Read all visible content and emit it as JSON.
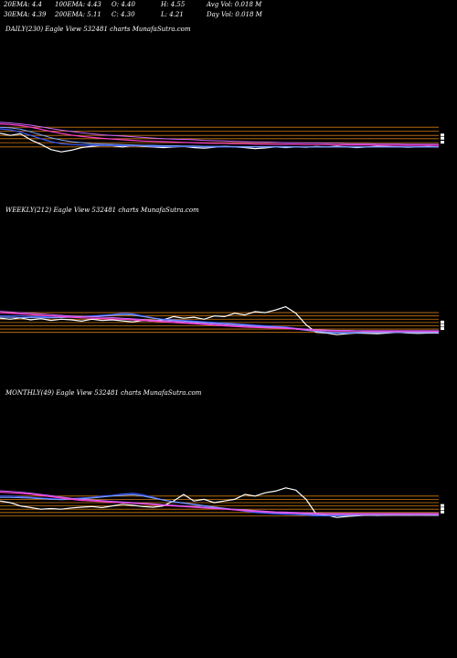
{
  "header": {
    "ema20": "20EMA: 4.4",
    "ema100": "100EMA: 4.43",
    "open": "O: 4.40",
    "high": "H: 4.55",
    "avg_vol": "Avg Vol: 0.018 M",
    "ema30": "30EMA: 4.39",
    "ema200": "200EMA: 5.11",
    "close": "C: 4.30",
    "low": "L: 4.21",
    "day_vol": "Day Vol: 0.018 M"
  },
  "colors": {
    "background": "#000000",
    "price": "#ffffff",
    "ema_blue": "#3b5bff",
    "ema_light_blue": "#7fa4ff",
    "ema_pink": "#ff3fcf",
    "ema_magenta": "#cc66ff",
    "support_lines": "#d07a12",
    "price_band": "#ffffff"
  },
  "chart_data": [
    {
      "type": "line",
      "label": "DAILY(230) Eagle  View  532481 charts MunafaSutra.com",
      "grid": false,
      "levels": [
        0.2,
        0.33,
        0.45,
        0.55,
        0.68,
        0.8
      ],
      "series": [
        {
          "color": "#ffffff",
          "width": 1.2,
          "values": [
            0.62,
            0.55,
            0.6,
            0.42,
            0.28,
            0.12,
            0.05,
            0.1,
            0.18,
            0.22,
            0.25,
            0.24,
            0.2,
            0.25,
            0.22,
            0.2,
            0.18,
            0.2,
            0.22,
            0.18,
            0.16,
            0.19,
            0.22,
            0.2,
            0.18,
            0.15,
            0.17,
            0.2,
            0.18,
            0.2,
            0.19,
            0.21,
            0.2,
            0.22,
            0.2,
            0.18,
            0.2,
            0.22,
            0.21,
            0.2,
            0.19,
            0.2,
            0.21,
            0.2
          ]
        },
        {
          "color": "#3b5bff",
          "width": 1.2,
          "values": [
            0.75,
            0.72,
            0.65,
            0.55,
            0.45,
            0.36,
            0.3,
            0.27,
            0.26,
            0.25,
            0.25,
            0.24,
            0.24,
            0.23,
            0.23,
            0.22,
            0.22,
            0.21,
            0.21,
            0.21,
            0.2,
            0.2,
            0.2,
            0.2,
            0.2,
            0.2,
            0.2,
            0.2,
            0.2,
            0.2,
            0.2,
            0.2,
            0.2,
            0.2,
            0.2,
            0.2,
            0.2,
            0.2,
            0.2,
            0.2,
            0.2,
            0.2,
            0.2,
            0.2
          ]
        },
        {
          "color": "#7fa4ff",
          "width": 1,
          "values": [
            0.8,
            0.78,
            0.74,
            0.66,
            0.57,
            0.48,
            0.41,
            0.36,
            0.33,
            0.3,
            0.29,
            0.28,
            0.27,
            0.26,
            0.25,
            0.25,
            0.24,
            0.24,
            0.23,
            0.23,
            0.22,
            0.22,
            0.22,
            0.21,
            0.21,
            0.21,
            0.21,
            0.21,
            0.21,
            0.2,
            0.2,
            0.2,
            0.2,
            0.2,
            0.2,
            0.2,
            0.2,
            0.2,
            0.2,
            0.2,
            0.2,
            0.2,
            0.2,
            0.2
          ]
        },
        {
          "color": "#ff3fcf",
          "width": 1.2,
          "values": [
            0.9,
            0.88,
            0.85,
            0.8,
            0.74,
            0.67,
            0.61,
            0.56,
            0.52,
            0.49,
            0.46,
            0.44,
            0.42,
            0.4,
            0.38,
            0.37,
            0.36,
            0.35,
            0.34,
            0.33,
            0.32,
            0.31,
            0.31,
            0.3,
            0.3,
            0.29,
            0.29,
            0.28,
            0.28,
            0.28,
            0.27,
            0.27,
            0.27,
            0.26,
            0.26,
            0.26,
            0.26,
            0.25,
            0.25,
            0.25,
            0.25,
            0.25,
            0.25,
            0.25
          ]
        },
        {
          "color": "#cc66ff",
          "width": 1,
          "values": [
            0.95,
            0.93,
            0.9,
            0.86,
            0.81,
            0.76,
            0.71,
            0.67,
            0.63,
            0.6,
            0.57,
            0.55,
            0.53,
            0.51,
            0.49,
            0.47,
            0.45,
            0.44,
            0.43,
            0.42,
            0.4,
            0.39,
            0.38,
            0.37,
            0.36,
            0.35,
            0.35,
            0.34,
            0.33,
            0.33,
            0.32,
            0.32,
            0.31,
            0.31,
            0.3,
            0.3,
            0.3,
            0.29,
            0.29,
            0.29,
            0.28,
            0.28,
            0.28,
            0.28
          ]
        }
      ]
    },
    {
      "type": "line",
      "label": "WEEKLY(212) Eagle  View  532481 charts MunafaSutra.com",
      "grid": false,
      "levels": [
        0.12,
        0.22,
        0.32,
        0.42,
        0.52,
        0.62,
        0.72
      ],
      "series": [
        {
          "color": "#ffffff",
          "width": 1.2,
          "values": [
            0.55,
            0.52,
            0.56,
            0.5,
            0.54,
            0.48,
            0.52,
            0.5,
            0.46,
            0.52,
            0.48,
            0.5,
            0.47,
            0.44,
            0.48,
            0.46,
            0.5,
            0.6,
            0.55,
            0.58,
            0.52,
            0.62,
            0.6,
            0.7,
            0.65,
            0.75,
            0.72,
            0.8,
            0.9,
            0.7,
            0.35,
            0.12,
            0.1,
            0.05,
            0.08,
            0.1,
            0.09,
            0.08,
            0.1,
            0.12,
            0.1,
            0.09,
            0.1,
            0.1
          ]
        },
        {
          "color": "#3b5bff",
          "width": 1.2,
          "values": [
            0.62,
            0.62,
            0.62,
            0.6,
            0.6,
            0.58,
            0.6,
            0.6,
            0.6,
            0.62,
            0.64,
            0.66,
            0.7,
            0.68,
            0.62,
            0.56,
            0.52,
            0.5,
            0.48,
            0.46,
            0.44,
            0.42,
            0.4,
            0.38,
            0.36,
            0.34,
            0.32,
            0.3,
            0.28,
            0.24,
            0.2,
            0.16,
            0.12,
            0.1,
            0.1,
            0.11,
            0.12,
            0.12,
            0.12,
            0.12,
            0.12,
            0.12,
            0.12,
            0.12
          ]
        },
        {
          "color": "#7fa4ff",
          "width": 1,
          "values": [
            0.58,
            0.58,
            0.57,
            0.57,
            0.56,
            0.56,
            0.57,
            0.58,
            0.59,
            0.6,
            0.62,
            0.64,
            0.66,
            0.65,
            0.6,
            0.55,
            0.5,
            0.48,
            0.46,
            0.44,
            0.42,
            0.4,
            0.38,
            0.36,
            0.34,
            0.32,
            0.3,
            0.28,
            0.26,
            0.22,
            0.18,
            0.15,
            0.13,
            0.12,
            0.12,
            0.12,
            0.12,
            0.12,
            0.12,
            0.12,
            0.12,
            0.12,
            0.12,
            0.12
          ]
        },
        {
          "color": "#ff3fcf",
          "width": 1.2,
          "values": [
            0.72,
            0.7,
            0.68,
            0.66,
            0.64,
            0.62,
            0.6,
            0.58,
            0.56,
            0.55,
            0.54,
            0.53,
            0.52,
            0.5,
            0.48,
            0.46,
            0.44,
            0.42,
            0.4,
            0.38,
            0.36,
            0.34,
            0.32,
            0.3,
            0.28,
            0.27,
            0.26,
            0.25,
            0.24,
            0.22,
            0.2,
            0.18,
            0.17,
            0.16,
            0.16,
            0.16,
            0.15,
            0.15,
            0.15,
            0.15,
            0.15,
            0.15,
            0.15,
            0.15
          ]
        },
        {
          "color": "#cc66ff",
          "width": 1,
          "values": [
            0.76,
            0.74,
            0.72,
            0.7,
            0.68,
            0.66,
            0.64,
            0.62,
            0.6,
            0.59,
            0.58,
            0.57,
            0.55,
            0.53,
            0.51,
            0.49,
            0.47,
            0.45,
            0.43,
            0.41,
            0.39,
            0.37,
            0.35,
            0.33,
            0.31,
            0.3,
            0.28,
            0.27,
            0.26,
            0.24,
            0.22,
            0.2,
            0.19,
            0.18,
            0.18,
            0.17,
            0.17,
            0.17,
            0.17,
            0.17,
            0.17,
            0.17,
            0.17,
            0.17
          ]
        }
      ]
    },
    {
      "type": "line",
      "label": "MONTHLY(49) Eagle  View  532481 charts MunafaSutra.com",
      "grid": false,
      "levels": [
        0.1,
        0.2,
        0.3,
        0.4,
        0.5,
        0.6,
        0.7
      ],
      "series": [
        {
          "color": "#ffffff",
          "width": 1.2,
          "values": [
            0.55,
            0.5,
            0.4,
            0.35,
            0.3,
            0.32,
            0.3,
            0.34,
            0.36,
            0.38,
            0.35,
            0.4,
            0.45,
            0.42,
            0.38,
            0.36,
            0.4,
            0.55,
            0.75,
            0.55,
            0.6,
            0.5,
            0.55,
            0.6,
            0.75,
            0.7,
            0.8,
            0.85,
            0.95,
            0.88,
            0.6,
            0.15,
            0.12,
            0.05,
            0.08,
            0.1,
            0.12,
            0.11,
            0.12,
            0.14,
            0.12,
            0.13,
            0.12,
            0.12
          ]
        },
        {
          "color": "#3b5bff",
          "width": 1.2,
          "values": [
            0.7,
            0.7,
            0.68,
            0.66,
            0.64,
            0.62,
            0.6,
            0.62,
            0.64,
            0.66,
            0.7,
            0.72,
            0.76,
            0.78,
            0.74,
            0.66,
            0.58,
            0.52,
            0.48,
            0.44,
            0.4,
            0.36,
            0.32,
            0.28,
            0.24,
            0.2,
            0.18,
            0.16,
            0.15,
            0.14,
            0.12,
            0.1,
            0.1,
            0.1,
            0.11,
            0.12,
            0.12,
            0.12,
            0.12,
            0.12,
            0.12,
            0.12,
            0.12,
            0.12
          ]
        },
        {
          "color": "#7fa4ff",
          "width": 1,
          "values": [
            0.66,
            0.66,
            0.65,
            0.64,
            0.62,
            0.6,
            0.59,
            0.6,
            0.62,
            0.64,
            0.67,
            0.7,
            0.72,
            0.74,
            0.7,
            0.64,
            0.58,
            0.53,
            0.49,
            0.45,
            0.41,
            0.37,
            0.33,
            0.29,
            0.26,
            0.23,
            0.21,
            0.19,
            0.18,
            0.17,
            0.15,
            0.13,
            0.12,
            0.12,
            0.12,
            0.12,
            0.12,
            0.12,
            0.12,
            0.12,
            0.12,
            0.12,
            0.12,
            0.12
          ]
        },
        {
          "color": "#ff3fcf",
          "width": 1.2,
          "values": [
            0.82,
            0.8,
            0.78,
            0.76,
            0.72,
            0.68,
            0.64,
            0.6,
            0.57,
            0.55,
            0.53,
            0.51,
            0.5,
            0.48,
            0.46,
            0.44,
            0.42,
            0.4,
            0.38,
            0.36,
            0.34,
            0.32,
            0.3,
            0.28,
            0.26,
            0.24,
            0.22,
            0.2,
            0.19,
            0.18,
            0.17,
            0.16,
            0.15,
            0.15,
            0.15,
            0.15,
            0.15,
            0.15,
            0.15,
            0.15,
            0.15,
            0.15,
            0.15,
            0.15
          ]
        },
        {
          "color": "#cc66ff",
          "width": 1,
          "values": [
            0.86,
            0.84,
            0.82,
            0.79,
            0.75,
            0.71,
            0.67,
            0.63,
            0.6,
            0.58,
            0.56,
            0.54,
            0.52,
            0.5,
            0.48,
            0.46,
            0.44,
            0.42,
            0.4,
            0.38,
            0.36,
            0.34,
            0.32,
            0.3,
            0.28,
            0.26,
            0.24,
            0.22,
            0.21,
            0.2,
            0.19,
            0.18,
            0.17,
            0.17,
            0.17,
            0.17,
            0.17,
            0.17,
            0.17,
            0.17,
            0.17,
            0.17,
            0.17,
            0.17
          ]
        }
      ]
    }
  ]
}
